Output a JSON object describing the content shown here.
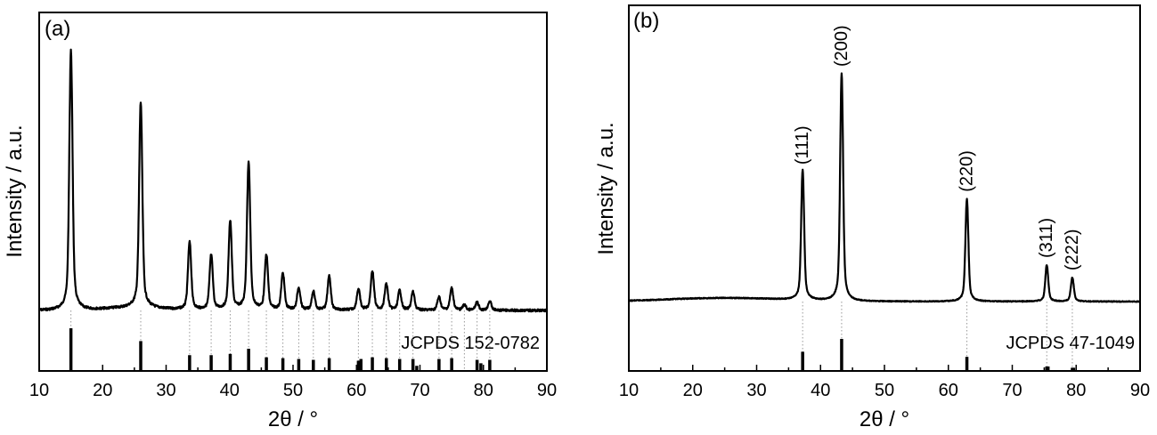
{
  "chart_data": [
    {
      "type": "line",
      "panel_label": "(a)",
      "xlabel": "2θ / °",
      "ylabel": "Intensity / a.u.",
      "xlim": [
        10,
        90
      ],
      "xticks": [
        "10",
        "20",
        "30",
        "40",
        "50",
        "60",
        "70",
        "80",
        "90"
      ],
      "reference_label": "JCPDS 152-0782",
      "peaks": [
        {
          "x": 15.0,
          "y": 100
        },
        {
          "x": 26.0,
          "y": 79
        },
        {
          "x": 33.7,
          "y": 26
        },
        {
          "x": 37.1,
          "y": 21
        },
        {
          "x": 40.1,
          "y": 34
        },
        {
          "x": 43.0,
          "y": 57
        },
        {
          "x": 45.8,
          "y": 21
        },
        {
          "x": 48.4,
          "y": 14
        },
        {
          "x": 50.9,
          "y": 8.5
        },
        {
          "x": 53.2,
          "y": 7
        },
        {
          "x": 55.7,
          "y": 13
        },
        {
          "x": 60.3,
          "y": 8
        },
        {
          "x": 62.5,
          "y": 15
        },
        {
          "x": 64.7,
          "y": 10
        },
        {
          "x": 66.8,
          "y": 7.5
        },
        {
          "x": 68.9,
          "y": 7
        },
        {
          "x": 73.0,
          "y": 5
        },
        {
          "x": 75.0,
          "y": 8.5
        },
        {
          "x": 77.0,
          "y": 2
        },
        {
          "x": 79.0,
          "y": 3
        },
        {
          "x": 81.0,
          "y": 3.5
        }
      ],
      "reference_lines": [
        {
          "x": 15.0,
          "h": 100
        },
        {
          "x": 26.0,
          "h": 70
        },
        {
          "x": 33.7,
          "h": 37
        },
        {
          "x": 37.1,
          "h": 37
        },
        {
          "x": 40.1,
          "h": 40
        },
        {
          "x": 43.0,
          "h": 52
        },
        {
          "x": 45.8,
          "h": 32
        },
        {
          "x": 48.4,
          "h": 30
        },
        {
          "x": 50.9,
          "h": 28
        },
        {
          "x": 53.2,
          "h": 26
        },
        {
          "x": 55.7,
          "h": 30
        },
        {
          "x": 60.3,
          "h": 24
        },
        {
          "x": 60.7,
          "h": 28
        },
        {
          "x": 62.5,
          "h": 32
        },
        {
          "x": 64.7,
          "h": 30
        },
        {
          "x": 66.8,
          "h": 28
        },
        {
          "x": 68.9,
          "h": 28
        },
        {
          "x": 69.5,
          "h": 12
        },
        {
          "x": 73.0,
          "h": 28
        },
        {
          "x": 75.0,
          "h": 30
        },
        {
          "x": 79.0,
          "h": 26
        },
        {
          "x": 79.6,
          "h": 18
        },
        {
          "x": 81.0,
          "h": 26
        }
      ]
    },
    {
      "type": "line",
      "panel_label": "(b)",
      "xlabel": "2θ / °",
      "ylabel": "Intensity / a.u.",
      "xlim": [
        10,
        90
      ],
      "xticks": [
        "10",
        "20",
        "30",
        "40",
        "50",
        "60",
        "70",
        "80",
        "90"
      ],
      "reference_label": "JCPDS 47-1049",
      "peaks": [
        {
          "x": 37.2,
          "y": 57,
          "label": "(111)"
        },
        {
          "x": 43.3,
          "y": 100,
          "label": "(200)"
        },
        {
          "x": 62.9,
          "y": 45,
          "label": "(220)"
        },
        {
          "x": 75.4,
          "y": 16,
          "label": "(311)"
        },
        {
          "x": 79.4,
          "y": 10.5,
          "label": "(222)"
        }
      ],
      "reference_lines": [
        {
          "x": 37.2,
          "h": 60
        },
        {
          "x": 43.3,
          "h": 100
        },
        {
          "x": 62.9,
          "h": 44
        },
        {
          "x": 75.4,
          "h": 14
        },
        {
          "x": 75.6,
          "h": 14
        },
        {
          "x": 79.4,
          "h": 10
        },
        {
          "x": 79.6,
          "h": 10
        }
      ]
    }
  ]
}
